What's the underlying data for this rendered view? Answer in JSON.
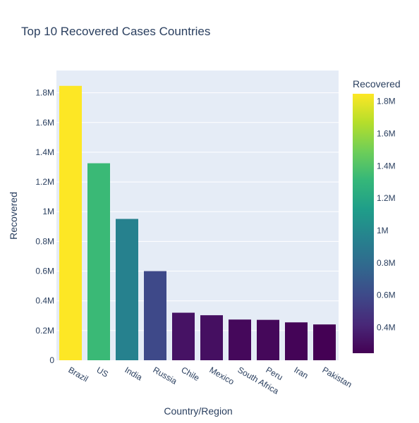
{
  "chart_data": {
    "type": "bar",
    "title": "Top 10 Recovered Cases Countries",
    "xlabel": "Country/Region",
    "ylabel": "Recovered",
    "categories": [
      "Brazil",
      "US",
      "India",
      "Russia",
      "Chile",
      "Mexico",
      "South Africa",
      "Peru",
      "Iran",
      "Pakistan"
    ],
    "values": [
      1846641,
      1325804,
      951166,
      600000,
      320000,
      303000,
      274000,
      272000,
      255000,
      241000
    ],
    "ylim": [
      0,
      1950000
    ],
    "y_ticks": [
      {
        "value": 0,
        "label": "0"
      },
      {
        "value": 200000,
        "label": "0.2M"
      },
      {
        "value": 400000,
        "label": "0.4M"
      },
      {
        "value": 600000,
        "label": "0.6M"
      },
      {
        "value": 800000,
        "label": "0.8M"
      },
      {
        "value": 1000000,
        "label": "1M"
      },
      {
        "value": 1200000,
        "label": "1.2M"
      },
      {
        "value": 1400000,
        "label": "1.4M"
      },
      {
        "value": 1600000,
        "label": "1.6M"
      },
      {
        "value": 1800000,
        "label": "1.8M"
      }
    ],
    "grid": true,
    "plot_background": "#e5ecf6",
    "colorscale": "Viridis",
    "colorbar": {
      "title": "Recovered",
      "range": [
        241000,
        1846641
      ],
      "ticks": [
        {
          "value": 400000,
          "label": "0.4M"
        },
        {
          "value": 600000,
          "label": "0.6M"
        },
        {
          "value": 800000,
          "label": "0.8M"
        },
        {
          "value": 1000000,
          "label": "1M"
        },
        {
          "value": 1200000,
          "label": "1.2M"
        },
        {
          "value": 1400000,
          "label": "1.4M"
        },
        {
          "value": 1600000,
          "label": "1.6M"
        },
        {
          "value": 1800000,
          "label": "1.8M"
        }
      ],
      "placement": "right"
    }
  }
}
